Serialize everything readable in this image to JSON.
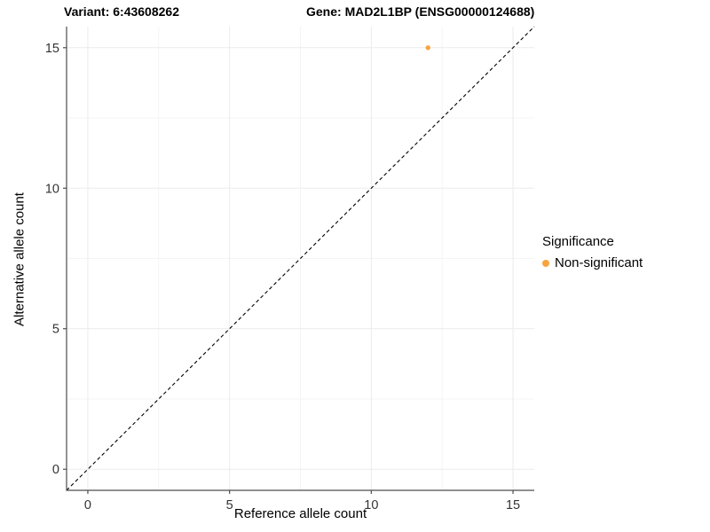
{
  "chart_data": {
    "type": "scatter",
    "title_left": "Variant: 6:43608262",
    "title_right": "Gene: MAD2L1BP (ENSG00000124688)",
    "xlabel": "Reference allele count",
    "ylabel": "Alternative allele count",
    "xlim": [
      -0.75,
      15.75
    ],
    "ylim": [
      -0.75,
      15.75
    ],
    "xticks": [
      0,
      5,
      10,
      15
    ],
    "yticks": [
      0,
      5,
      10,
      15
    ],
    "xminor": [
      2.5,
      7.5,
      12.5
    ],
    "yminor": [
      2.5,
      7.5,
      12.5
    ],
    "grid": true,
    "reference_line": {
      "equation": "y = x",
      "style": "dashed",
      "color": "#000000"
    },
    "series": [
      {
        "name": "Non-significant",
        "color": "#F8A440",
        "points": [
          {
            "x": 12,
            "y": 15
          }
        ]
      }
    ],
    "legend": {
      "position": "right",
      "title": "Significance",
      "items": [
        {
          "label": "Non-significant",
          "color": "#F8A440"
        }
      ]
    },
    "style": {
      "background": "#FFFFFF",
      "grid_major_color": "#EBEBEB",
      "grid_minor_color": "#F4F4F4",
      "axis_color": "#4D4D4D",
      "tick_label_color": "#333333",
      "point_radius": 2.7
    }
  }
}
